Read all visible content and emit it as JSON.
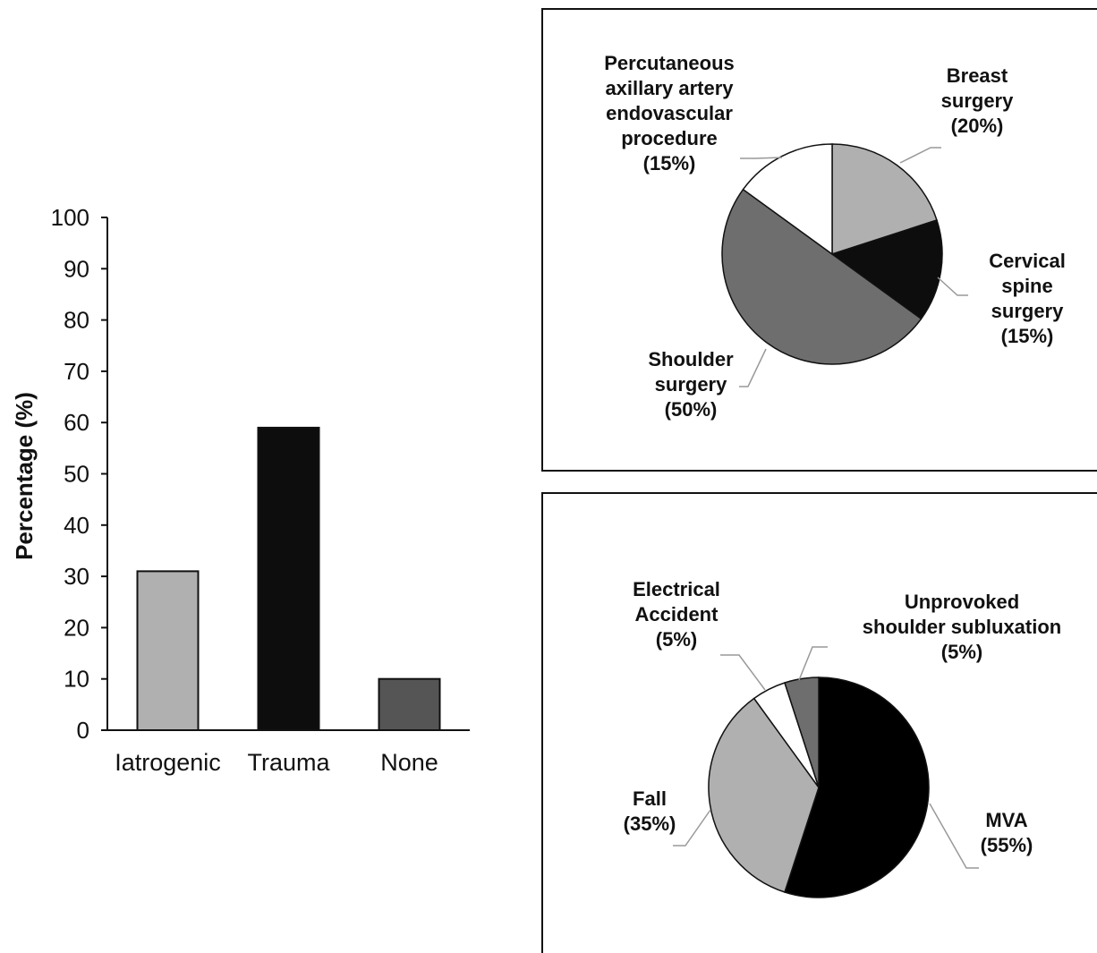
{
  "chart_data": [
    {
      "type": "bar",
      "categories": [
        "Iatrogenic",
        "Trauma",
        "None"
      ],
      "values": [
        31,
        59,
        10
      ],
      "colors": [
        "#b0b0b0",
        "#0d0d0d",
        "#555555"
      ],
      "ylabel": "Percentage (%)",
      "xlabel": "",
      "ylim": [
        0,
        100
      ],
      "yticks": [
        "0",
        "10",
        "20",
        "30",
        "40",
        "50",
        "60",
        "70",
        "80",
        "90",
        "100"
      ],
      "grid": false
    },
    {
      "type": "pie",
      "slices": [
        {
          "label": [
            "Breast",
            "surgery",
            "(20%)"
          ],
          "value": 20,
          "color": "#b0b0b0"
        },
        {
          "label": [
            "Cervical",
            "spine",
            "surgery",
            "(15%)"
          ],
          "value": 15,
          "color": "#0d0d0d"
        },
        {
          "label": [
            "Shoulder",
            "surgery",
            "(50%)"
          ],
          "value": 50,
          "color": "#6e6e6e"
        },
        {
          "label": [
            "Percutaneous",
            "axillary artery",
            "endovascular",
            "procedure",
            "(15%)"
          ],
          "value": 15,
          "color": "#ffffff"
        }
      ],
      "start_angle": "12 o'clock",
      "direction": "clockwise",
      "border": true
    },
    {
      "type": "pie",
      "slices": [
        {
          "label": [
            "MVA",
            "(55%)"
          ],
          "value": 55,
          "color": "#000000"
        },
        {
          "label": [
            "Fall",
            "(35%)"
          ],
          "value": 35,
          "color": "#b0b0b0"
        },
        {
          "label": [
            "Electrical",
            "Accident",
            "(5%)"
          ],
          "value": 5,
          "color": "#ffffff"
        },
        {
          "label": [
            "Unprovoked",
            "shoulder subluxation",
            "(5%)"
          ],
          "value": 5,
          "color": "#6e6e6e"
        }
      ],
      "start_angle": "12 o'clock",
      "direction": "clockwise",
      "border": true
    }
  ]
}
